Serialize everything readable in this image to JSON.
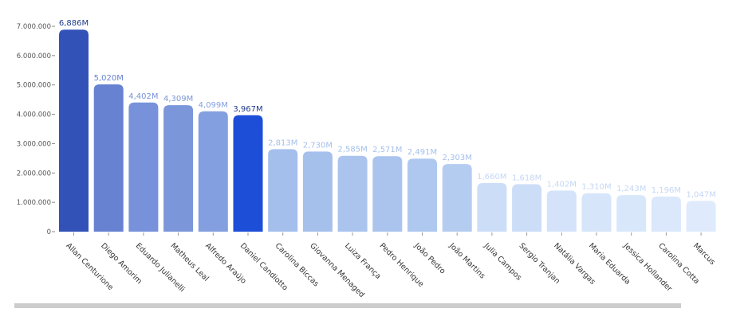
{
  "chart_data": {
    "type": "bar",
    "title": "",
    "xlabel": "",
    "ylabel": "",
    "ylim": [
      0,
      7000000
    ],
    "grid": false,
    "legend": null,
    "y_ticks": [
      "0",
      "1.000.000",
      "2.000.000",
      "3.000.000",
      "4.000.000",
      "5.000.000",
      "6.000.000",
      "7.000.000"
    ],
    "y_tick_values": [
      0,
      1000000,
      2000000,
      3000000,
      4000000,
      5000000,
      6000000,
      7000000
    ],
    "categories": [
      "Allan Centurione",
      "Diego Amorim",
      "Eduardo Julianelli",
      "Matheus Leal",
      "Alfredo Araújo",
      "Daniel Candiotto",
      "Carolina Biccas",
      "Giovanna Menaged",
      "Luiza França",
      "Pedro Henrique",
      "João Pedro",
      "João Martins",
      "Julia Campos",
      "Sergio Tranjan",
      "Natália Vargas",
      "Maria Eduarda",
      "Jessica Hollander",
      "Carolina Cotta",
      "Marcus"
    ],
    "values": [
      6886000,
      5020000,
      4402000,
      4309000,
      4099000,
      3967000,
      2813000,
      2730000,
      2585000,
      2571000,
      2491000,
      2303000,
      1660000,
      1618000,
      1402000,
      1310000,
      1243000,
      1196000,
      1047000
    ],
    "value_labels": [
      "6,886M",
      "5,020M",
      "4,402M",
      "4,309M",
      "4,099M",
      "3,967M",
      "2,813M",
      "2,730M",
      "2,585M",
      "2,571M",
      "2,491M",
      "2,303M",
      "1,660M",
      "1,618M",
      "1,402M",
      "1,310M",
      "1,243M",
      "1,196M",
      "1,047M"
    ],
    "colors": [
      "#3252b8",
      "#6782d1",
      "#7792da",
      "#7b96d9",
      "#839fdf",
      "#1d4ed8",
      "#a4bfec",
      "#a6c0ec",
      "#aac4ee",
      "#aac4ee",
      "#afc8ef",
      "#b4ccf0",
      "#ccddf7",
      "#ccddf7",
      "#d4e3fa",
      "#d6e5fa",
      "#d9e7fb",
      "#dbe8fb",
      "#dfebfc"
    ],
    "label_colors": [
      "#1e3a8a",
      "#6782d1",
      "#7792da",
      "#7b96d9",
      "#839fdf",
      "#1e3a8a",
      "#a4bfec",
      "#a4bfec",
      "#a4bfec",
      "#a4bfec",
      "#a4bfec",
      "#a4bfec",
      "#c4d6f5",
      "#c4d6f5",
      "#c4d6f5",
      "#c4d6f5",
      "#c4d6f5",
      "#c4d6f5",
      "#c4d6f5"
    ]
  },
  "scrollbar": {
    "visible": true
  }
}
